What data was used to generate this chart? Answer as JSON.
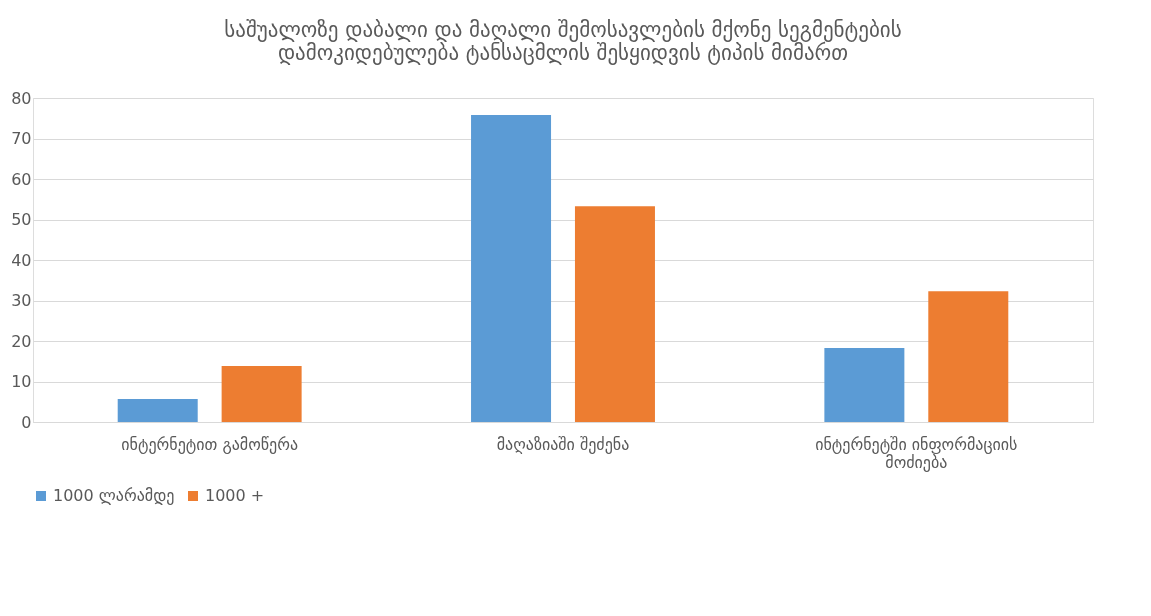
{
  "chart_data": {
    "type": "bar",
    "title": "საშუალოზე დაბალი და მაღალი შემოსავლების მქონე სეგმენტების დამოკიდებულება ტანსაცმლის შესყიდვის ტიპის მიმართ",
    "categories": [
      "ინტერნეტით გამოწერა",
      "მაღაზიაში შეძენა",
      "ინტერნეტში ინფორმაციის მოძიება"
    ],
    "series": [
      {
        "name": "1000 ლარამდე",
        "color": "#5b9bd5",
        "values": [
          5.7,
          75.8,
          18.3
        ]
      },
      {
        "name": "1000 +",
        "color": "#ed7d31",
        "values": [
          13.8,
          53.3,
          32.3
        ]
      }
    ],
    "ylim": [
      0,
      80
    ],
    "yticks": [
      0,
      10,
      20,
      30,
      40,
      50,
      60,
      70,
      80
    ],
    "grid": "y",
    "legend": "bottom"
  }
}
